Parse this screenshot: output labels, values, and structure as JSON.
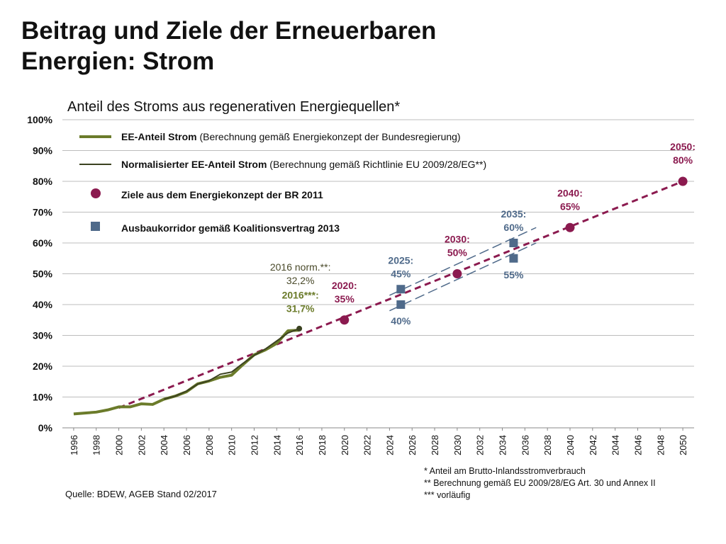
{
  "title_line1": "Beitrag und Ziele der Erneuerbaren",
  "title_line2": "Energien: Strom",
  "chart_data": {
    "type": "line",
    "title": "Anteil des Stroms aus regenerativen Energiequellen*",
    "xlabel": "",
    "ylabel": "",
    "xlim": [
      1995,
      2051
    ],
    "ylim": [
      0,
      100
    ],
    "grid": true,
    "legend_position": "top-left",
    "x_ticks": [
      "1996",
      "1998",
      "2000",
      "2002",
      "2004",
      "2006",
      "2008",
      "2010",
      "2012",
      "2014",
      "2016",
      "2018",
      "2020",
      "2022",
      "2024",
      "2026",
      "2028",
      "2030",
      "2032",
      "2034",
      "2036",
      "2038",
      "2040",
      "2042",
      "2044",
      "2046",
      "2048",
      "2050"
    ],
    "y_ticks": [
      "0%",
      "10%",
      "20%",
      "30%",
      "40%",
      "50%",
      "60%",
      "70%",
      "80%",
      "90%",
      "100%"
    ],
    "legend": [
      {
        "bold": "EE-Anteil Strom",
        "rest": " (Berechnung gemäß Energiekonzept der Bundesregierung)"
      },
      {
        "bold": "Normalisierter EE-Anteil Strom",
        "rest": " (Berechnung gemäß Richtlinie EU 2009/28/EG**)"
      },
      {
        "bold": "Ziele aus dem Energiekonzept der BR 2011",
        "rest": ""
      },
      {
        "bold": "Ausbaukorridor gemäß Koalitionsvertrag 2013",
        "rest": ""
      }
    ],
    "series": [
      {
        "name": "EE-Anteil Strom",
        "color": "#6b7b2a",
        "x": [
          1996,
          1997,
          1998,
          1999,
          2000,
          2001,
          2002,
          2003,
          2004,
          2005,
          2006,
          2007,
          2008,
          2009,
          2010,
          2011,
          2012,
          2013,
          2014,
          2015,
          2016
        ],
        "y": [
          4.5,
          4.8,
          5.1,
          5.8,
          6.8,
          6.8,
          7.8,
          7.6,
          9.3,
          10.3,
          11.7,
          14.3,
          15.2,
          16.4,
          17.1,
          20.5,
          23.7,
          25.3,
          27.4,
          31.5,
          31.7
        ]
      },
      {
        "name": "Normalisierter EE-Anteil Strom",
        "color": "#3b4220",
        "x": [
          2004,
          2005,
          2006,
          2007,
          2008,
          2009,
          2010,
          2011,
          2012,
          2013,
          2014,
          2015,
          2016
        ],
        "y": [
          9.3,
          10.3,
          11.9,
          14.2,
          15.3,
          17.4,
          18.1,
          20.9,
          23.5,
          25.6,
          28.2,
          30.8,
          32.2
        ]
      }
    ],
    "targets": {
      "color": "#8b1a4f",
      "points": [
        {
          "x": 2020,
          "y": 35,
          "label_year": "2020:",
          "label_value": "35%"
        },
        {
          "x": 2030,
          "y": 50,
          "label_year": "2030:",
          "label_value": "50%"
        },
        {
          "x": 2040,
          "y": 65,
          "label_year": "2040:",
          "label_value": "65%"
        },
        {
          "x": 2050,
          "y": 80,
          "label_year": "2050:",
          "label_value": "80%"
        }
      ],
      "trend_line": {
        "x": [
          2000,
          2050
        ],
        "y": [
          6.5,
          80
        ]
      }
    },
    "corridor": {
      "color": "#4f6a8a",
      "points": [
        {
          "x": 2025,
          "y": 45,
          "label": "2025:\n45%"
        },
        {
          "x": 2025,
          "y": 40,
          "label": "40%"
        },
        {
          "x": 2035,
          "y": 60,
          "label": "2035:\n60%"
        },
        {
          "x": 2035,
          "y": 55,
          "label": "55%"
        }
      ],
      "upper_line": {
        "x": [
          2024,
          2037
        ],
        "y": [
          43,
          65
        ]
      },
      "lower_line": {
        "x": [
          2024,
          2037
        ],
        "y": [
          38,
          60
        ]
      }
    },
    "annotations": [
      {
        "text": "2016 norm.**:\n32,2%",
        "color": "#4a4a2a",
        "bold": false,
        "x": 2016.6,
        "y": 51
      },
      {
        "text": "2016***:\n31,7%",
        "color": "#6b7b2a",
        "bold": true,
        "x": 2016.6,
        "y": 42
      }
    ]
  },
  "source": "Quelle: BDEW, AGEB Stand 02/2017",
  "footnotes": [
    "* Anteil am Brutto-Inlandsstromverbrauch",
    "** Berechnung gemäß EU 2009/28/EG Art. 30 und Annex II",
    "*** vorläufig"
  ]
}
